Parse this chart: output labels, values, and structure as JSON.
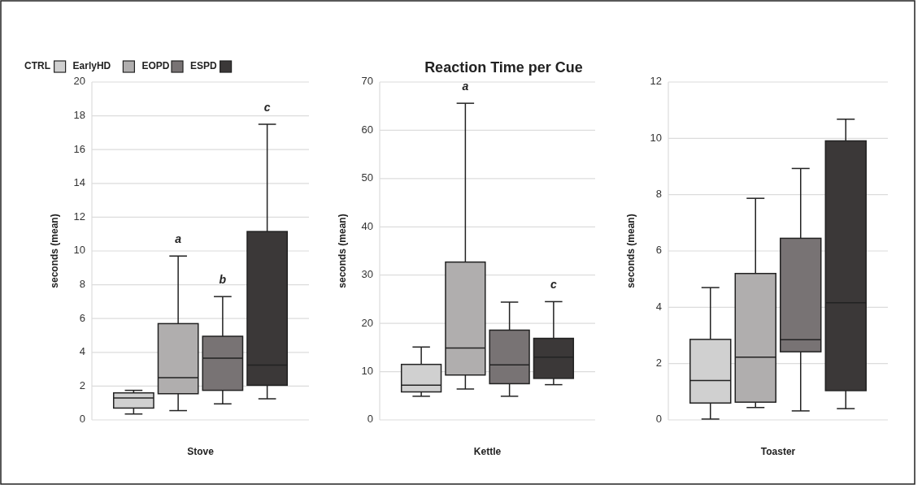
{
  "chart_data": [
    {
      "type": "box",
      "xlabel": "Stove",
      "ylabel": "seconds (mean)",
      "categories": [
        null
      ],
      "ylim": [
        0,
        20
      ],
      "yticks": [
        0,
        2,
        4,
        6,
        8,
        10,
        12,
        14,
        16,
        18,
        20
      ],
      "grid": "y",
      "legend": "top left",
      "series": [
        {
          "name": "CTRL",
          "color": "#d0d0d0",
          "boxes": [
            {
              "low": 0.35,
              "q1": 0.7,
              "median": 1.3,
              "q3": 1.6,
              "high": 1.75
            }
          ]
        },
        {
          "name": "EarlyHD",
          "color": "#b0aeae",
          "boxes": [
            {
              "low": 0.55,
              "q1": 1.55,
              "median": 2.5,
              "q3": 5.7,
              "high": 9.7
            }
          ]
        },
        {
          "name": "EOPD",
          "color": "#787374",
          "boxes": [
            {
              "low": 0.95,
              "q1": 1.75,
              "median": 3.65,
              "q3": 4.95,
              "high": 7.3
            }
          ]
        },
        {
          "name": "ESPD",
          "color": "#3b3838",
          "boxes": [
            {
              "low": 1.25,
              "q1": 2.05,
              "median": 3.25,
              "q3": 11.15,
              "high": 17.5
            }
          ]
        }
      ],
      "annotations": [
        "a",
        "b",
        "c"
      ]
    },
    {
      "type": "box",
      "title": "Reaction Time per Cue",
      "xlabel": "Kettle",
      "ylabel": "seconds (mean)",
      "categories": [
        null
      ],
      "ylim": [
        0,
        70
      ],
      "yticks": [
        0,
        10,
        20,
        30,
        40,
        50,
        60,
        70
      ],
      "grid": "y",
      "series": [
        {
          "color": "#d0d0d0",
          "boxes": [
            {
              "low": 4.9,
              "q1": 5.8,
              "median": 7.2,
              "q3": 11.5,
              "high": 15.1
            }
          ]
        },
        {
          "color": "#b0aeae",
          "boxes": [
            {
              "low": 6.4,
              "q1": 9.3,
              "median": 14.9,
              "q3": 32.7,
              "high": 65.6
            }
          ]
        },
        {
          "color": "#787374",
          "boxes": [
            {
              "low": 4.9,
              "q1": 7.5,
              "median": 11.4,
              "q3": 18.6,
              "high": 24.4
            }
          ]
        },
        {
          "color": "#3b3838",
          "boxes": [
            {
              "low": 7.3,
              "q1": 8.6,
              "median": 13,
              "q3": 16.9,
              "high": 24.5
            }
          ]
        }
      ],
      "annotations": [
        "a",
        "c"
      ]
    },
    {
      "type": "box",
      "xlabel": "Toaster",
      "ylabel": "seconds (mean)",
      "categories": [
        null
      ],
      "ylim": [
        0,
        12
      ],
      "yticks": [
        0,
        2,
        4,
        6,
        8,
        10,
        12
      ],
      "grid": "y",
      "series": [
        {
          "color": "#d0d0d0",
          "boxes": [
            {
              "low": 0.03,
              "q1": 0.6,
              "median": 1.4,
              "q3": 2.86,
              "high": 4.7
            }
          ]
        },
        {
          "color": "#b0aeae",
          "boxes": [
            {
              "low": 0.44,
              "q1": 0.63,
              "median": 2.23,
              "q3": 5.2,
              "high": 7.87
            }
          ]
        },
        {
          "color": "#787374",
          "boxes": [
            {
              "low": 0.32,
              "q1": 2.42,
              "median": 2.85,
              "q3": 6.45,
              "high": 8.93
            }
          ]
        },
        {
          "color": "#3b3838",
          "boxes": [
            {
              "low": 0.4,
              "q1": 1.04,
              "median": 4.16,
              "q3": 9.91,
              "high": 10.68
            }
          ]
        }
      ]
    }
  ]
}
